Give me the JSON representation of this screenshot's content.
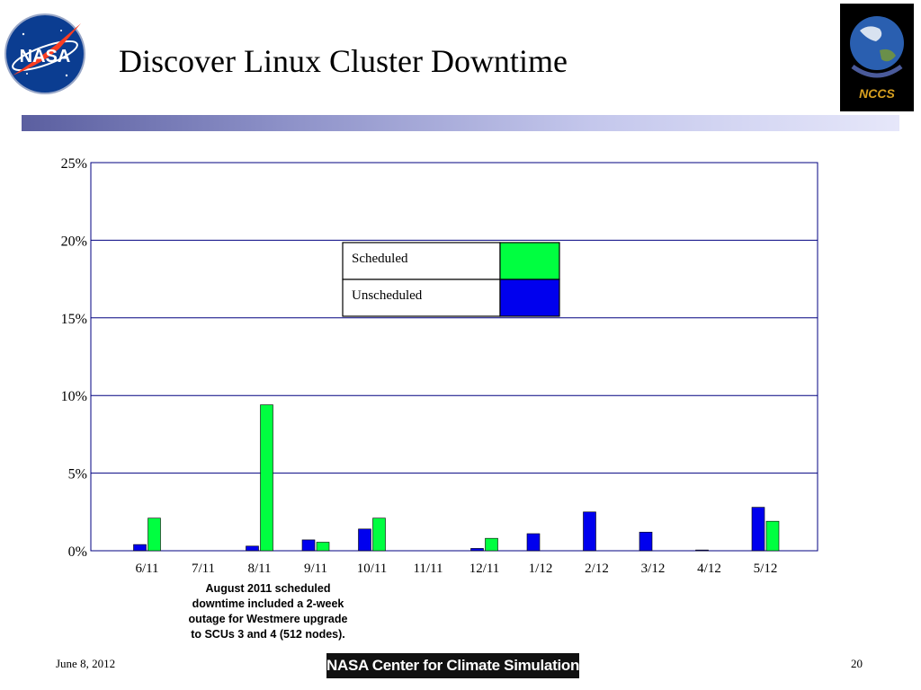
{
  "slide": {
    "title": "Discover Linux Cluster Downtime",
    "footer_date": "June 8, 2012",
    "footer_banner": "NASA Center for Climate Simulation",
    "page_number": "20",
    "note": [
      "August 2011 scheduled",
      "downtime included a 2-week",
      "outage for Westmere upgrade",
      "to SCUs 3 and 4 (512 nodes)."
    ],
    "nasa_logo_text": "NASA",
    "nccs_logo_text": "NCCS"
  },
  "colors": {
    "scheduled": "#00ff40",
    "unscheduled": "#0000ee",
    "gridline": "#000080",
    "title_bar": "#8d91c8"
  },
  "chart_data": {
    "type": "bar",
    "categories": [
      "6/11",
      "7/11",
      "8/11",
      "9/11",
      "10/11",
      "11/11",
      "12/11",
      "1/12",
      "2/12",
      "3/12",
      "4/12",
      "5/12"
    ],
    "series": [
      {
        "name": "Unscheduled",
        "values": [
          0.4,
          0.0,
          0.3,
          0.7,
          1.4,
          0.0,
          0.15,
          1.1,
          2.5,
          1.2,
          0.05,
          2.8
        ]
      },
      {
        "name": "Scheduled",
        "values": [
          2.1,
          0.0,
          9.4,
          0.55,
          2.1,
          0.0,
          0.8,
          0.0,
          0.0,
          0.0,
          0.0,
          1.9
        ]
      }
    ],
    "yticks": [
      "0%",
      "5%",
      "10%",
      "15%",
      "20%",
      "25%"
    ],
    "ylim": [
      0,
      25
    ],
    "grid": true,
    "legend": {
      "placement": "top-center",
      "entries": [
        "Scheduled",
        "Unscheduled"
      ]
    }
  }
}
